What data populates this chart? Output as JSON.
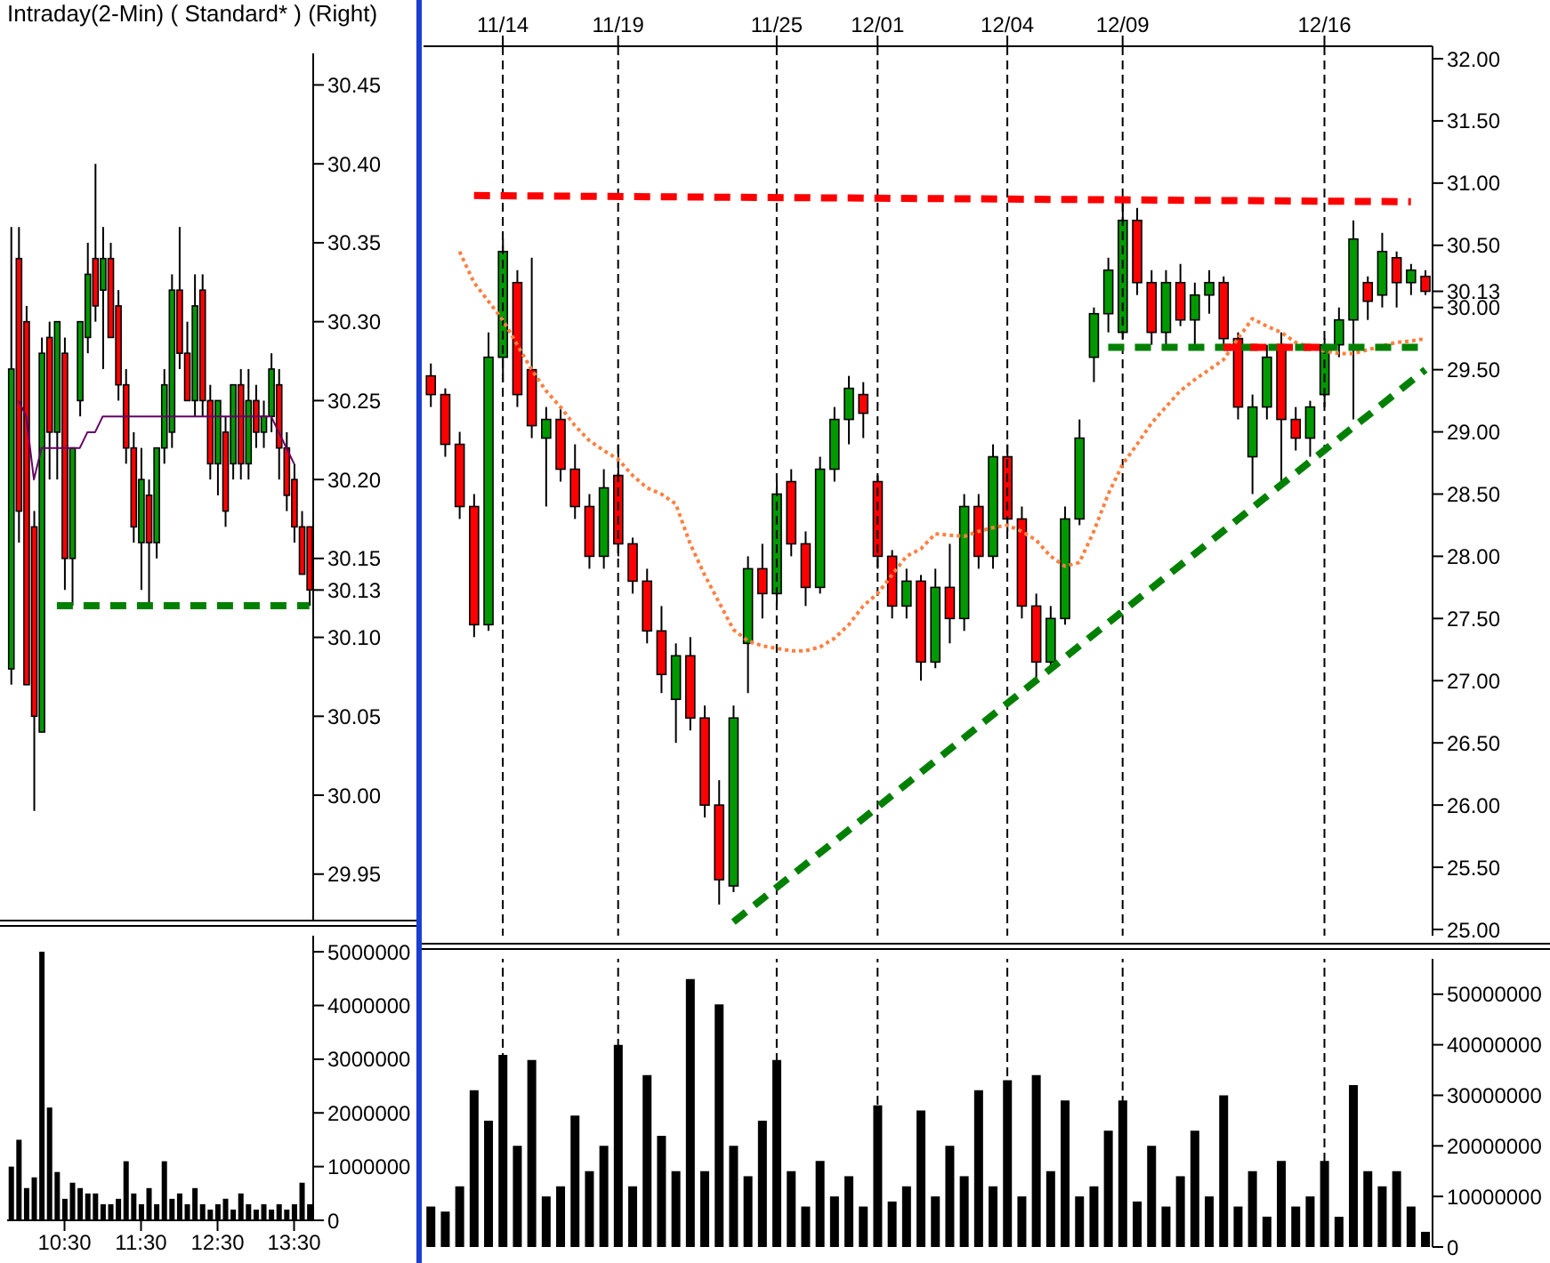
{
  "chart_data": [
    {
      "type": "candlestick",
      "title": "Intraday(2-Min) ( Standard* )  (Right)",
      "tick_labels": "y",
      "categories": [
        null,
        null,
        null,
        null,
        null,
        null,
        null,
        null,
        null,
        null,
        null,
        null,
        null,
        null,
        null,
        null,
        null,
        null,
        null,
        null,
        null,
        null,
        null,
        null,
        null,
        null,
        null,
        null,
        null,
        null,
        null,
        null,
        null,
        null,
        null,
        null,
        null,
        null,
        null,
        null
      ],
      "ohlc": [
        [
          30.08,
          30.36,
          30.07,
          30.27
        ],
        [
          30.34,
          30.36,
          30.16,
          30.18
        ],
        [
          30.3,
          30.31,
          30.07,
          30.07
        ],
        [
          30.17,
          30.18,
          29.99,
          30.05
        ],
        [
          30.04,
          30.29,
          30.04,
          30.28
        ],
        [
          30.29,
          30.3,
          30.2,
          30.23
        ],
        [
          30.23,
          30.3,
          30.2,
          30.3
        ],
        [
          30.28,
          30.29,
          30.13,
          30.15
        ],
        [
          30.15,
          30.22,
          30.12,
          30.22
        ],
        [
          30.25,
          30.3,
          30.24,
          30.3
        ],
        [
          30.29,
          30.35,
          30.28,
          30.33
        ],
        [
          30.34,
          30.4,
          30.3,
          30.31
        ],
        [
          30.32,
          30.36,
          30.27,
          30.34
        ],
        [
          30.34,
          30.35,
          30.29,
          30.29
        ],
        [
          30.31,
          30.32,
          30.25,
          30.26
        ],
        [
          30.26,
          30.27,
          30.21,
          30.22
        ],
        [
          30.22,
          30.23,
          30.16,
          30.17
        ],
        [
          30.16,
          30.22,
          30.13,
          30.2
        ],
        [
          30.19,
          30.2,
          30.12,
          30.16
        ],
        [
          30.16,
          30.22,
          30.15,
          30.22
        ],
        [
          30.22,
          30.27,
          30.21,
          30.26
        ],
        [
          30.23,
          30.33,
          30.22,
          30.32
        ],
        [
          30.32,
          30.36,
          30.27,
          30.28
        ],
        [
          30.28,
          30.3,
          30.25,
          30.25
        ],
        [
          30.25,
          30.33,
          30.24,
          30.31
        ],
        [
          30.32,
          30.33,
          30.24,
          30.25
        ],
        [
          30.25,
          30.26,
          30.2,
          30.21
        ],
        [
          30.21,
          30.25,
          30.19,
          30.25
        ],
        [
          30.23,
          30.24,
          30.17,
          30.18
        ],
        [
          30.21,
          30.26,
          30.2,
          30.26
        ],
        [
          30.26,
          30.27,
          30.2,
          30.21
        ],
        [
          30.21,
          30.27,
          30.2,
          30.25
        ],
        [
          30.25,
          30.26,
          30.22,
          30.23
        ],
        [
          30.23,
          30.25,
          30.22,
          30.24
        ],
        [
          30.24,
          30.28,
          30.23,
          30.27
        ],
        [
          30.26,
          30.27,
          30.2,
          30.22
        ],
        [
          30.22,
          30.23,
          30.18,
          30.19
        ],
        [
          30.2,
          30.21,
          30.16,
          30.17
        ],
        [
          30.17,
          30.18,
          30.14,
          30.14
        ],
        [
          30.17,
          30.17,
          30.12,
          30.13
        ]
      ],
      "colors": [
        "#009900",
        "#ff0000",
        "#ff0000",
        "#ff0000",
        "#009900",
        "#ff0000",
        "#009900",
        "#ff0000",
        "#009900",
        "#009900",
        "#009900",
        "#ff0000",
        "#009900",
        "#ff0000",
        "#ff0000",
        "#ff0000",
        "#ff0000",
        "#009900",
        "#ff0000",
        "#009900",
        "#009900",
        "#009900",
        "#ff0000",
        "#ff0000",
        "#009900",
        "#ff0000",
        "#ff0000",
        "#009900",
        "#ff0000",
        "#009900",
        "#ff0000",
        "#009900",
        "#ff0000",
        "#009900",
        "#009900",
        "#ff0000",
        "#ff0000",
        "#ff0000",
        "#ff0000",
        "#ff0000"
      ],
      "series": [
        {
          "type": "line",
          "color": "#660066",
          "line_style": "solid",
          "values": [
            null,
            30.25,
            30.24,
            30.2,
            30.22,
            30.22,
            30.22,
            30.22,
            30.22,
            30.22,
            30.23,
            30.23,
            30.24,
            30.24,
            30.24,
            30.24,
            30.24,
            30.24,
            30.24,
            30.24,
            30.24,
            30.24,
            30.24,
            30.24,
            30.24,
            30.24,
            30.24,
            30.24,
            30.24,
            30.24,
            30.24,
            30.24,
            30.24,
            30.24,
            30.24,
            30.23,
            30.22,
            30.21,
            null,
            null
          ]
        },
        {
          "type": "line",
          "color": "#008000",
          "line_style": "dashed",
          "values": [
            null,
            null,
            null,
            null,
            null,
            null,
            30.12,
            null,
            null,
            null,
            null,
            null,
            null,
            null,
            null,
            null,
            null,
            null,
            null,
            null,
            null,
            null,
            null,
            null,
            null,
            null,
            null,
            null,
            null,
            null,
            null,
            null,
            null,
            null,
            null,
            null,
            null,
            null,
            null,
            30.12
          ]
        }
      ],
      "ylim": [
        29.92,
        30.47
      ],
      "yticks": [
        {
          "value": 29.95,
          "label": "29.95"
        },
        {
          "value": 30,
          "label": "30.00"
        },
        {
          "value": 30.05,
          "label": "30.05"
        },
        {
          "value": 30.1,
          "label": "30.10"
        },
        {
          "value": 30.13,
          "label": "30.13"
        },
        {
          "value": 30.15,
          "label": "30.15"
        },
        {
          "value": 30.2,
          "label": "30.20"
        },
        {
          "value": 30.25,
          "label": "30.25"
        },
        {
          "value": 30.3,
          "label": "30.30"
        },
        {
          "value": 30.35,
          "label": "30.35"
        },
        {
          "value": 30.4,
          "label": "30.40"
        },
        {
          "value": 30.45,
          "label": "30.45"
        }
      ]
    },
    {
      "type": "bar",
      "color": "#000000",
      "categories": [
        null,
        null,
        null,
        null,
        null,
        null,
        null,
        "10:30",
        null,
        null,
        null,
        null,
        null,
        null,
        null,
        null,
        null,
        "11:30",
        null,
        null,
        null,
        null,
        null,
        null,
        null,
        null,
        null,
        "12:30",
        null,
        null,
        null,
        null,
        null,
        null,
        null,
        null,
        null,
        "13:30",
        null,
        null
      ],
      "values": [
        1000000,
        1500000,
        600000,
        800000,
        5000000,
        2100000,
        900000,
        400000,
        700000,
        600000,
        500000,
        500000,
        300000,
        300000,
        400000,
        1100000,
        500000,
        300000,
        600000,
        300000,
        1100000,
        400000,
        500000,
        300000,
        600000,
        300000,
        200000,
        300000,
        400000,
        200000,
        500000,
        300000,
        200000,
        300000,
        200000,
        300000,
        200000,
        300000,
        700000,
        300000
      ],
      "ylim": [
        0,
        5300000
      ],
      "yticks": [
        0,
        1000000,
        2000000,
        3000000,
        4000000,
        5000000
      ]
    },
    {
      "type": "candlestick",
      "grid": "x",
      "categories": [
        null,
        null,
        null,
        null,
        null,
        "11/14",
        null,
        null,
        null,
        null,
        null,
        null,
        null,
        "11/19",
        null,
        null,
        null,
        null,
        null,
        null,
        null,
        null,
        null,
        null,
        "11/25",
        null,
        null,
        null,
        null,
        null,
        null,
        "12/01",
        null,
        null,
        null,
        null,
        null,
        null,
        null,
        null,
        "12/04",
        null,
        null,
        null,
        null,
        null,
        null,
        null,
        "12/09",
        null,
        null,
        null,
        null,
        null,
        null,
        null,
        null,
        null,
        null,
        null,
        null,
        null,
        "12/16",
        null,
        null,
        null,
        null,
        null,
        null,
        null
      ],
      "ohlc": [
        [
          29.45,
          29.55,
          29.2,
          29.3
        ],
        [
          29.3,
          29.35,
          28.8,
          28.9
        ],
        [
          28.9,
          29.0,
          28.3,
          28.4
        ],
        [
          28.4,
          28.5,
          27.35,
          27.45
        ],
        [
          27.45,
          29.8,
          27.4,
          29.6
        ],
        [
          29.6,
          30.55,
          29.4,
          30.45
        ],
        [
          30.2,
          30.3,
          29.2,
          29.3
        ],
        [
          29.5,
          30.4,
          28.95,
          29.05
        ],
        [
          28.95,
          29.2,
          28.4,
          29.1
        ],
        [
          29.1,
          29.2,
          28.6,
          28.7
        ],
        [
          28.7,
          28.9,
          28.3,
          28.4
        ],
        [
          28.4,
          28.5,
          27.9,
          28.0
        ],
        [
          28.0,
          28.7,
          27.9,
          28.55
        ],
        [
          28.65,
          28.9,
          28.0,
          28.1
        ],
        [
          28.1,
          28.15,
          27.7,
          27.8
        ],
        [
          27.8,
          27.9,
          27.3,
          27.4
        ],
        [
          27.4,
          27.6,
          26.9,
          27.05
        ],
        [
          26.85,
          27.3,
          26.5,
          27.2
        ],
        [
          27.2,
          27.35,
          26.6,
          26.7
        ],
        [
          26.7,
          26.8,
          25.9,
          26.0
        ],
        [
          26.0,
          26.2,
          25.2,
          25.4
        ],
        [
          25.35,
          26.8,
          25.3,
          26.7
        ],
        [
          27.3,
          28.0,
          26.9,
          27.9
        ],
        [
          27.9,
          28.1,
          27.5,
          27.7
        ],
        [
          27.7,
          28.6,
          27.6,
          28.5
        ],
        [
          28.6,
          28.7,
          28.0,
          28.1
        ],
        [
          28.1,
          28.2,
          27.6,
          27.75
        ],
        [
          27.75,
          28.8,
          27.7,
          28.7
        ],
        [
          28.7,
          29.2,
          28.6,
          29.1
        ],
        [
          29.1,
          29.45,
          28.9,
          29.35
        ],
        [
          29.3,
          29.4,
          28.95,
          29.15
        ],
        [
          28.6,
          28.65,
          27.9,
          28.0
        ],
        [
          28.0,
          28.05,
          27.5,
          27.6
        ],
        [
          27.6,
          27.9,
          27.5,
          27.8
        ],
        [
          27.8,
          27.85,
          27.0,
          27.15
        ],
        [
          27.15,
          27.9,
          27.1,
          27.75
        ],
        [
          27.75,
          28.1,
          27.3,
          27.5
        ],
        [
          27.5,
          28.5,
          27.4,
          28.4
        ],
        [
          28.4,
          28.5,
          27.9,
          28.0
        ],
        [
          28.0,
          28.9,
          27.9,
          28.8
        ],
        [
          28.8,
          28.9,
          28.2,
          28.3
        ],
        [
          28.3,
          28.4,
          27.5,
          27.6
        ],
        [
          27.6,
          27.7,
          27.0,
          27.15
        ],
        [
          27.15,
          27.6,
          27.1,
          27.5
        ],
        [
          27.5,
          28.4,
          27.45,
          28.3
        ],
        [
          28.3,
          29.1,
          28.25,
          28.95
        ],
        [
          29.6,
          30.0,
          29.4,
          29.95
        ],
        [
          29.95,
          30.4,
          29.8,
          30.3
        ],
        [
          29.8,
          30.85,
          29.75,
          30.7
        ],
        [
          30.7,
          30.8,
          30.1,
          30.2
        ],
        [
          30.2,
          30.3,
          29.7,
          29.8
        ],
        [
          29.8,
          30.3,
          29.7,
          30.2
        ],
        [
          30.2,
          30.35,
          29.85,
          29.9
        ],
        [
          29.9,
          30.2,
          29.7,
          30.1
        ],
        [
          30.1,
          30.3,
          29.95,
          30.2
        ],
        [
          30.2,
          30.25,
          29.7,
          29.75
        ],
        [
          29.75,
          29.8,
          29.1,
          29.2
        ],
        [
          28.8,
          29.3,
          28.5,
          29.2
        ],
        [
          29.2,
          29.7,
          29.1,
          29.6
        ],
        [
          29.7,
          29.8,
          28.6,
          29.1
        ],
        [
          29.1,
          29.2,
          28.85,
          28.95
        ],
        [
          28.95,
          29.25,
          28.8,
          29.2
        ],
        [
          29.3,
          29.75,
          29.2,
          29.7
        ],
        [
          29.7,
          30.0,
          29.6,
          29.9
        ],
        [
          29.9,
          30.7,
          29.1,
          30.55
        ],
        [
          30.2,
          30.25,
          29.9,
          30.05
        ],
        [
          30.1,
          30.6,
          30.0,
          30.45
        ],
        [
          30.4,
          30.45,
          30.0,
          30.2
        ],
        [
          30.2,
          30.35,
          30.1,
          30.3
        ],
        [
          30.25,
          30.3,
          30.1,
          30.13
        ]
      ],
      "colors": [
        "#ff0000",
        "#ff0000",
        "#ff0000",
        "#ff0000",
        "#009900",
        "#009900",
        "#ff0000",
        "#ff0000",
        "#009900",
        "#ff0000",
        "#ff0000",
        "#ff0000",
        "#009900",
        "#ff0000",
        "#ff0000",
        "#ff0000",
        "#ff0000",
        "#009900",
        "#ff0000",
        "#ff0000",
        "#ff0000",
        "#009900",
        "#009900",
        "#ff0000",
        "#009900",
        "#ff0000",
        "#ff0000",
        "#009900",
        "#009900",
        "#009900",
        "#ff0000",
        "#ff0000",
        "#ff0000",
        "#009900",
        "#ff0000",
        "#009900",
        "#ff0000",
        "#009900",
        "#ff0000",
        "#009900",
        "#ff0000",
        "#ff0000",
        "#ff0000",
        "#009900",
        "#009900",
        "#009900",
        "#009900",
        "#009900",
        "#009900",
        "#ff0000",
        "#ff0000",
        "#009900",
        "#ff0000",
        "#009900",
        "#009900",
        "#ff0000",
        "#ff0000",
        "#009900",
        "#009900",
        "#ff0000",
        "#ff0000",
        "#009900",
        "#009900",
        "#009900",
        "#009900",
        "#ff0000",
        "#009900",
        "#ff0000",
        "#009900",
        "#ff0000"
      ],
      "series": [
        {
          "type": "line",
          "color": "#ff8040",
          "line_style": "dotted",
          "values": [
            null,
            null,
            30.45,
            30.2,
            30.05,
            29.9,
            29.7,
            29.5,
            29.33,
            29.2,
            29.05,
            28.93,
            28.85,
            28.78,
            28.65,
            28.55,
            28.5,
            28.42,
            28.1,
            27.85,
            27.63,
            27.41,
            27.32,
            27.28,
            27.26,
            27.24,
            27.24,
            27.27,
            27.34,
            27.45,
            27.6,
            27.7,
            27.85,
            28.0,
            28.06,
            28.18,
            28.17,
            28.16,
            28.2,
            28.23,
            28.25,
            28.2,
            28.13,
            28.0,
            27.92,
            27.95,
            28.2,
            28.5,
            28.74,
            28.9,
            29.07,
            29.2,
            29.33,
            29.42,
            29.5,
            29.58,
            29.75,
            29.91,
            29.85,
            29.8,
            29.72,
            29.68,
            29.65,
            29.63,
            29.63,
            29.66,
            29.69,
            29.72,
            29.73,
            29.75
          ]
        },
        {
          "type": "line",
          "color": "#ff0000",
          "line_style": "dashed",
          "values": [
            null,
            null,
            null,
            30.9,
            null,
            null,
            null,
            null,
            null,
            null,
            null,
            null,
            null,
            null,
            null,
            null,
            null,
            null,
            null,
            null,
            null,
            null,
            null,
            null,
            null,
            null,
            null,
            null,
            null,
            null,
            null,
            null,
            null,
            null,
            null,
            null,
            null,
            null,
            null,
            null,
            null,
            null,
            null,
            null,
            null,
            null,
            null,
            null,
            null,
            null,
            null,
            null,
            null,
            null,
            null,
            null,
            null,
            null,
            null,
            null,
            null,
            null,
            null,
            null,
            null,
            null,
            null,
            null,
            30.85,
            null
          ]
        },
        {
          "type": "line",
          "color": "#008000",
          "line_style": "dashed",
          "values": [
            null,
            null,
            null,
            null,
            null,
            null,
            null,
            null,
            null,
            null,
            null,
            null,
            null,
            null,
            null,
            null,
            null,
            null,
            null,
            null,
            null,
            null,
            null,
            null,
            null,
            null,
            null,
            null,
            null,
            null,
            null,
            null,
            null,
            null,
            null,
            null,
            null,
            null,
            null,
            null,
            null,
            null,
            null,
            null,
            null,
            null,
            null,
            29.68,
            null,
            null,
            null,
            null,
            null,
            null,
            null,
            null,
            null,
            null,
            null,
            null,
            null,
            null,
            null,
            null,
            null,
            null,
            null,
            null,
            null,
            29.68
          ]
        },
        {
          "type": "line",
          "color": "#ff0000",
          "line_style": "dashed",
          "values": [
            null,
            null,
            null,
            null,
            null,
            null,
            null,
            null,
            null,
            null,
            null,
            null,
            null,
            null,
            null,
            null,
            null,
            null,
            null,
            null,
            null,
            null,
            null,
            null,
            null,
            null,
            null,
            null,
            null,
            null,
            null,
            null,
            null,
            null,
            null,
            null,
            null,
            null,
            null,
            null,
            null,
            null,
            null,
            null,
            null,
            null,
            null,
            null,
            null,
            null,
            null,
            null,
            null,
            null,
            null,
            29.68,
            null,
            null,
            null,
            null,
            null,
            null,
            29.68,
            null,
            null,
            null,
            null,
            null,
            null,
            null
          ]
        },
        {
          "type": "line",
          "color": "#008000",
          "line_style": "dashed",
          "values": [
            null,
            null,
            null,
            null,
            null,
            null,
            null,
            null,
            null,
            null,
            null,
            null,
            null,
            null,
            null,
            null,
            null,
            null,
            null,
            null,
            null,
            25.06,
            null,
            null,
            null,
            null,
            null,
            null,
            null,
            null,
            null,
            null,
            null,
            null,
            null,
            null,
            null,
            null,
            null,
            null,
            null,
            null,
            null,
            null,
            null,
            null,
            null,
            null,
            null,
            null,
            null,
            null,
            null,
            null,
            null,
            null,
            null,
            null,
            null,
            null,
            null,
            null,
            null,
            null,
            null,
            null,
            null,
            null,
            null,
            29.5
          ]
        }
      ],
      "ylim": [
        24.95,
        32.1
      ],
      "yticks": [
        {
          "value": 25,
          "label": "25.00"
        },
        {
          "value": 25.5,
          "label": "25.50"
        },
        {
          "value": 26,
          "label": "26.00"
        },
        {
          "value": 26.5,
          "label": "26.50"
        },
        {
          "value": 27,
          "label": "27.00"
        },
        {
          "value": 27.5,
          "label": "27.50"
        },
        {
          "value": 28,
          "label": "28.00"
        },
        {
          "value": 28.5,
          "label": "28.50"
        },
        {
          "value": 29,
          "label": "29.00"
        },
        {
          "value": 29.5,
          "label": "29.50"
        },
        {
          "value": 30,
          "label": "30.00"
        },
        {
          "value": 30.13,
          "label": "30.13"
        },
        {
          "value": 30.5,
          "label": "30.50"
        },
        {
          "value": 31,
          "label": "31.00"
        },
        {
          "value": 31.5,
          "label": "31.50"
        },
        {
          "value": 32,
          "label": "32.00"
        }
      ]
    },
    {
      "type": "bar",
      "color": "#000000",
      "grid": "x",
      "tick_labels": "y",
      "categories": [
        null,
        null,
        null,
        null,
        null,
        null,
        null,
        null,
        null,
        null,
        null,
        null,
        null,
        null,
        null,
        null,
        null,
        null,
        null,
        null,
        null,
        null,
        null,
        null,
        null,
        null,
        null,
        null,
        null,
        null,
        null,
        null,
        null,
        null,
        null,
        null,
        null,
        null,
        null,
        null,
        null,
        null,
        null,
        null,
        null,
        null,
        null,
        null,
        null,
        null,
        null,
        null,
        null,
        null,
        null,
        null,
        null,
        null,
        null,
        null,
        null,
        null,
        null,
        null,
        null,
        null,
        null,
        null,
        null,
        null
      ],
      "values": [
        8000000,
        7000000,
        12000000,
        31000000,
        25000000,
        38000000,
        20000000,
        37000000,
        10000000,
        12000000,
        26000000,
        15000000,
        20000000,
        40000000,
        12000000,
        34000000,
        22000000,
        15000000,
        53000000,
        15000000,
        48000000,
        20000000,
        14000000,
        25000000,
        37000000,
        15000000,
        8000000,
        17000000,
        10000000,
        14000000,
        8000000,
        28000000,
        9000000,
        12000000,
        27000000,
        10000000,
        20000000,
        14000000,
        31000000,
        12000000,
        33000000,
        10000000,
        34000000,
        15000000,
        29000000,
        10000000,
        12000000,
        23000000,
        29000000,
        9000000,
        20000000,
        8000000,
        14000000,
        23000000,
        10000000,
        30000000,
        8000000,
        15000000,
        6000000,
        17000000,
        8000000,
        10000000,
        17000000,
        6000000,
        32000000,
        15000000,
        12000000,
        15000000,
        8000000,
        3000000
      ],
      "ylim": [
        0,
        57000000
      ],
      "yticks": [
        0,
        10000000,
        20000000,
        30000000,
        40000000,
        50000000
      ]
    }
  ]
}
